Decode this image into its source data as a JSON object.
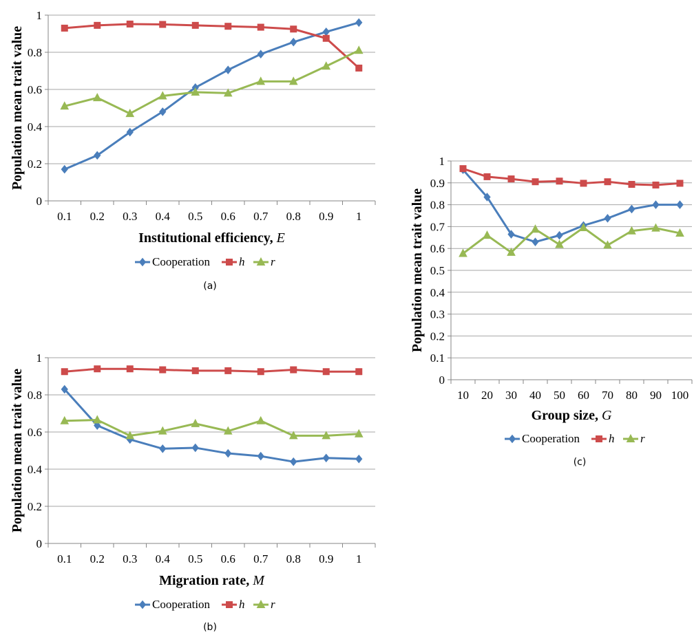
{
  "chart_data": [
    {
      "id": "a",
      "type": "line",
      "caption": "(a)",
      "xlabel": "Institutional efficiency, ",
      "xlabel_var": "E",
      "ylabel": "Population mean trait value",
      "ylim": [
        0,
        1
      ],
      "yticks": [
        "0",
        "0.2",
        "0.4",
        "0.6",
        "0.8",
        "1"
      ],
      "categories": [
        "0.1",
        "0.2",
        "0.3",
        "0.4",
        "0.5",
        "0.6",
        "0.7",
        "0.8",
        "0.9",
        "1"
      ],
      "grid": true,
      "legend_position": "bottom",
      "series": [
        {
          "name": "Cooperation",
          "italic": false,
          "color": "#4a7ebb",
          "marker": "diamond",
          "values": [
            0.17,
            0.245,
            0.37,
            0.48,
            0.61,
            0.705,
            0.79,
            0.855,
            0.91,
            0.96
          ]
        },
        {
          "name": "h",
          "italic": true,
          "color": "#cd4b4b",
          "marker": "square",
          "values": [
            0.93,
            0.945,
            0.952,
            0.95,
            0.945,
            0.94,
            0.935,
            0.925,
            0.875,
            0.715
          ]
        },
        {
          "name": "r",
          "italic": true,
          "color": "#98b954",
          "marker": "triangle",
          "values": [
            0.51,
            0.555,
            0.47,
            0.565,
            0.585,
            0.58,
            0.643,
            0.643,
            0.725,
            0.81
          ]
        }
      ]
    },
    {
      "id": "b",
      "type": "line",
      "caption": "(b)",
      "xlabel": "Migration rate, ",
      "xlabel_var": "M",
      "ylabel": "Population mean trait value",
      "ylim": [
        0,
        1
      ],
      "yticks": [
        "0",
        "0.2",
        "0.4",
        "0.6",
        "0.8",
        "1"
      ],
      "categories": [
        "0.1",
        "0.2",
        "0.3",
        "0.4",
        "0.5",
        "0.6",
        "0.7",
        "0.8",
        "0.9",
        "1"
      ],
      "grid": true,
      "legend_position": "bottom",
      "series": [
        {
          "name": "Cooperation",
          "italic": false,
          "color": "#4a7ebb",
          "marker": "diamond",
          "values": [
            0.83,
            0.635,
            0.56,
            0.51,
            0.515,
            0.485,
            0.47,
            0.44,
            0.46,
            0.455
          ]
        },
        {
          "name": "h",
          "italic": true,
          "color": "#cd4b4b",
          "marker": "square",
          "values": [
            0.925,
            0.94,
            0.94,
            0.935,
            0.93,
            0.93,
            0.925,
            0.935,
            0.925,
            0.925
          ]
        },
        {
          "name": "r",
          "italic": true,
          "color": "#98b954",
          "marker": "triangle",
          "values": [
            0.66,
            0.665,
            0.58,
            0.605,
            0.645,
            0.605,
            0.66,
            0.58,
            0.58,
            0.59
          ]
        }
      ]
    },
    {
      "id": "c",
      "type": "line",
      "caption": "(c)",
      "xlabel": "Group size, ",
      "xlabel_var": "G",
      "ylabel": "Population mean trait value",
      "ylim": [
        0,
        1
      ],
      "yticks": [
        "0",
        "0.1",
        "0.2",
        "0.3",
        "0.4",
        "0.5",
        "0.6",
        "0.7",
        "0.8",
        "0.9",
        "1"
      ],
      "categories": [
        "10",
        "20",
        "30",
        "40",
        "50",
        "60",
        "70",
        "80",
        "90",
        "100"
      ],
      "grid": true,
      "legend_position": "bottom",
      "series": [
        {
          "name": "Cooperation",
          "italic": false,
          "color": "#4a7ebb",
          "marker": "diamond",
          "values": [
            0.96,
            0.835,
            0.665,
            0.63,
            0.66,
            0.705,
            0.738,
            0.78,
            0.8,
            0.8
          ]
        },
        {
          "name": "h",
          "italic": true,
          "color": "#cd4b4b",
          "marker": "square",
          "values": [
            0.965,
            0.928,
            0.918,
            0.905,
            0.908,
            0.898,
            0.905,
            0.893,
            0.89,
            0.898
          ]
        },
        {
          "name": "r",
          "italic": true,
          "color": "#98b954",
          "marker": "triangle",
          "values": [
            0.577,
            0.66,
            0.582,
            0.688,
            0.618,
            0.695,
            0.615,
            0.68,
            0.693,
            0.67
          ]
        }
      ]
    }
  ]
}
